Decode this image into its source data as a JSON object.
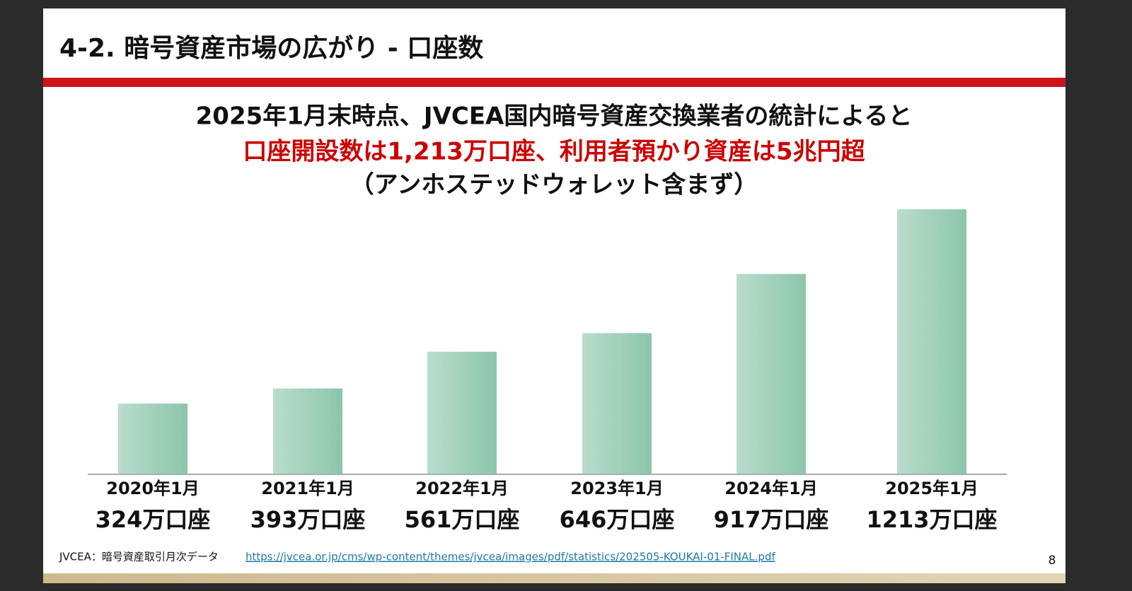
{
  "header": {
    "title": "4-2. 暗号資産市場の広がり - 口座数"
  },
  "headline": {
    "line1": "2025年1月末時点、JVCEA国内暗号資産交換業者の統計によると",
    "line2": "口座開設数は1,213万口座、利用者預かり資産は5兆円超",
    "line3": "（アンホステッドウォレット含まず）"
  },
  "chart_data": {
    "type": "bar",
    "categories": [
      "2020年1月",
      "2021年1月",
      "2022年1月",
      "2023年1月",
      "2024年1月",
      "2025年1月"
    ],
    "values": [
      324,
      393,
      561,
      646,
      917,
      1213
    ],
    "value_labels": [
      "324万口座",
      "393万口座",
      "561万口座",
      "646万口座",
      "917万口座",
      "1213万口座"
    ],
    "color": "#8cc5ab",
    "grid": false
  },
  "footer": {
    "source": "JVCEA：暗号資産取引月次データ",
    "link": "https://jvcea.or.jp/cms/wp-content/themes/jvcea/images/pdf/statistics/202505-KOUKAI-01-FINAL.pdf",
    "page_number": "8"
  }
}
